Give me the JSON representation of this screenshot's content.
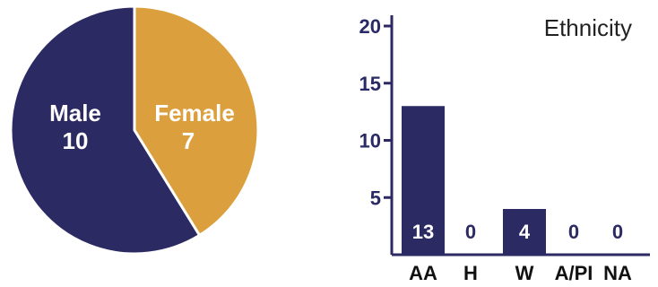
{
  "colors": {
    "navy": "#2c2a63",
    "gold": "#dba03d",
    "axis": "#2c2a63",
    "white": "#ffffff"
  },
  "chart_data": [
    {
      "type": "pie",
      "categories": [
        "Male",
        "Female"
      ],
      "values": [
        10,
        7
      ],
      "slice_colors": [
        "#2c2a63",
        "#dba03d"
      ],
      "labels": {
        "male_name": "Male",
        "male_value": "10",
        "female_name": "Female",
        "female_value": "7"
      }
    },
    {
      "type": "bar",
      "title": "Ethnicity",
      "categories": [
        "AA",
        "H",
        "W",
        "A/PI",
        "NA"
      ],
      "values": [
        13,
        0,
        4,
        0,
        0
      ],
      "value_labels": [
        "13",
        "0",
        "4",
        "0",
        "0"
      ],
      "ylim": [
        0,
        20
      ],
      "yticks": [
        "5",
        "10",
        "15",
        "20"
      ],
      "ytick_values": [
        5,
        10,
        15,
        20
      ],
      "bar_color": "#2c2a63"
    }
  ]
}
